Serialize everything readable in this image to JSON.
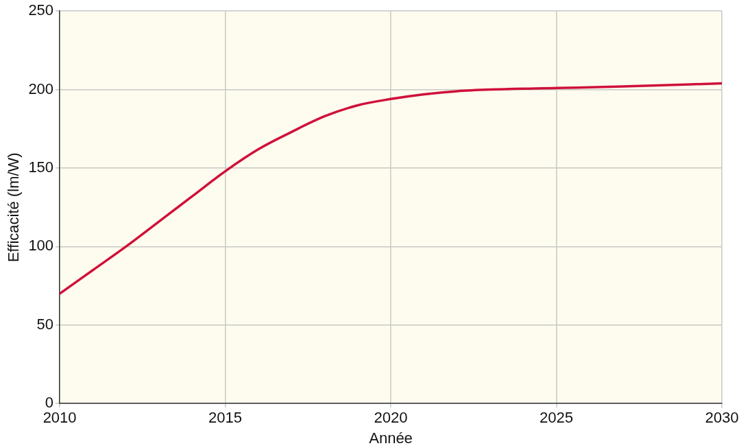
{
  "chart_data": {
    "type": "line",
    "xlabel": "Année",
    "ylabel": "Efficacité (lm/W)",
    "x": [
      2010,
      2011,
      2012,
      2013,
      2014,
      2015,
      2016,
      2017,
      2018,
      2019,
      2020,
      2021,
      2022,
      2023,
      2025,
      2027,
      2030
    ],
    "series": [
      {
        "color": "#d0103a",
        "values": [
          70,
          85,
          100,
          116,
          132,
          148,
          162,
          173,
          183,
          190,
          194,
          197,
          199,
          200,
          201,
          202,
          204
        ]
      }
    ],
    "xlim": [
      2010,
      2030
    ],
    "xticks": [
      2010,
      2015,
      2020,
      2025,
      2030
    ],
    "ylim": [
      0,
      250
    ],
    "yticks": [
      0,
      50,
      100,
      150,
      200,
      250
    ],
    "grid": true,
    "legend": false,
    "marker": "none",
    "line_style": "solid"
  }
}
